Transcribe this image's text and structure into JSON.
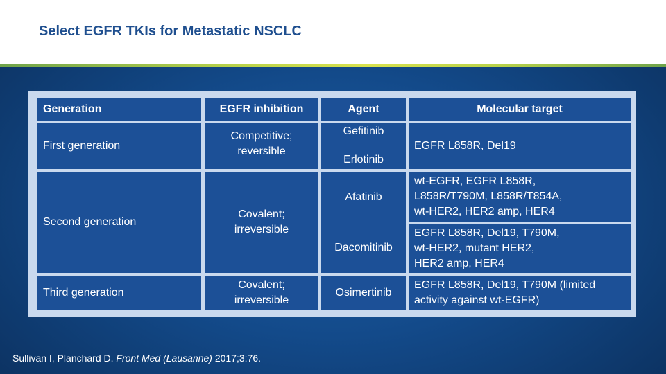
{
  "slide": {
    "title": "Select EGFR TKIs for Metastatic NSCLC"
  },
  "table": {
    "headers": {
      "generation": "Generation",
      "inhibition": "EGFR inhibition",
      "agent": "Agent",
      "target": "Molecular target"
    },
    "rows": [
      {
        "generation": "First generation",
        "inhibition_line1": "Competitive;",
        "inhibition_line2": "reversible",
        "agents": [
          "Gefitinib",
          "Erlotinib"
        ],
        "target": "EGFR L858R, Del19"
      },
      {
        "generation": "Second generation",
        "inhibition_line1": "Covalent;",
        "inhibition_line2": "irreversible",
        "agents": [
          "Afatinib",
          "Dacomitinib"
        ],
        "targets": [
          [
            "wt-EGFR, EGFR L858R,",
            "L858R/T790M, L858R/T854A,",
            "wt-HER2, HER2 amp, HER4"
          ],
          [
            "EGFR L858R, Del19, T790M,",
            "wt-HER2, mutant HER2,",
            "HER2 amp, HER4"
          ]
        ]
      },
      {
        "generation": "Third generation",
        "inhibition_line1": "Covalent;",
        "inhibition_line2": "irreversible",
        "agents": [
          "Osimertinib"
        ],
        "target_line1": "EGFR L858R, Del19, T790M (limited",
        "target_line2": "activity against wt-EGFR)"
      }
    ]
  },
  "citation": {
    "authors": "Sullivan I, Planchard D. ",
    "journal": "Front Med (Lausanne)",
    "details": " 2017;3:76."
  },
  "colors": {
    "cell_fill": "#1c5097",
    "frame": "#c9d9ee",
    "title": "#1f4f8f",
    "rule": "#b8d24a"
  }
}
